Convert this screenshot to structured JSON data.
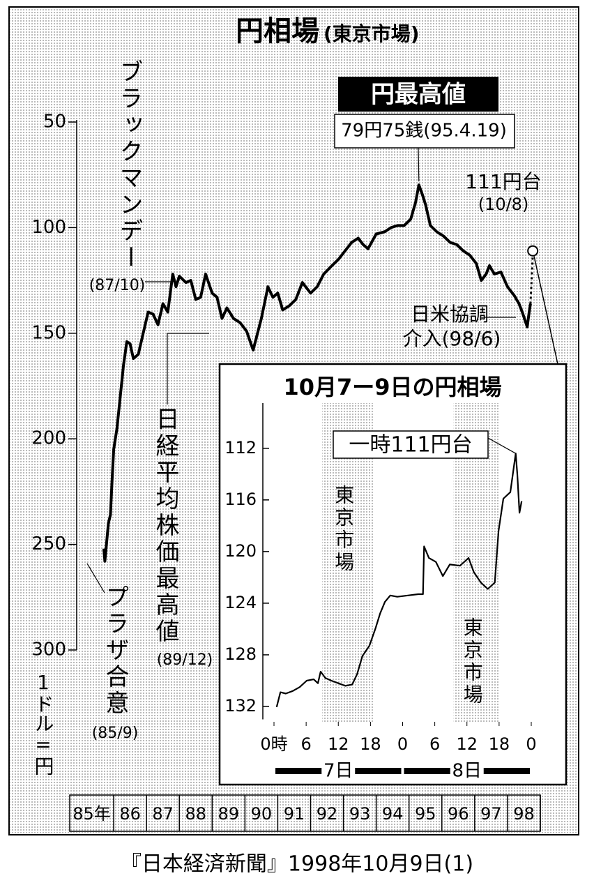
{
  "title": "円相場",
  "subtitle": "(東京市場)",
  "source": "『日本経済新聞』1998年10月9日(1)",
  "chart_data": [
    {
      "type": "line",
      "y_label": "1ドル=円",
      "color": "#000000",
      "y_inverted": true,
      "ylim": [
        50,
        300
      ],
      "yticks": [
        50,
        100,
        150,
        200,
        250,
        300
      ],
      "xlim": [
        1985,
        1999
      ],
      "xticks": [
        {
          "value": 1985,
          "label": "85年"
        },
        {
          "value": 1986,
          "label": "86"
        },
        {
          "value": 1987,
          "label": "87"
        },
        {
          "value": 1988,
          "label": "88"
        },
        {
          "value": 1989,
          "label": "89"
        },
        {
          "value": 1990,
          "label": "90"
        },
        {
          "value": 1991,
          "label": "91"
        },
        {
          "value": 1992,
          "label": "92"
        },
        {
          "value": 1993,
          "label": "93"
        },
        {
          "value": 1994,
          "label": "94"
        },
        {
          "value": 1995,
          "label": "95"
        },
        {
          "value": 1996,
          "label": "96"
        },
        {
          "value": 1997,
          "label": "97"
        },
        {
          "value": 1998,
          "label": "98"
        },
        {
          "value": 1999,
          "label": ""
        }
      ],
      "x": [
        1985.7,
        1985.73,
        1985.78,
        1985.84,
        1985.9,
        1985.95,
        1986.0,
        1986.1,
        1986.2,
        1986.3,
        1986.4,
        1986.5,
        1986.6,
        1986.75,
        1986.9,
        1987.05,
        1987.2,
        1987.35,
        1987.5,
        1987.65,
        1987.8,
        1987.9,
        1988.0,
        1988.2,
        1988.35,
        1988.5,
        1988.65,
        1988.8,
        1989.0,
        1989.15,
        1989.3,
        1989.45,
        1989.65,
        1989.85,
        1990.05,
        1990.25,
        1990.35,
        1990.5,
        1990.7,
        1990.85,
        1991.0,
        1991.15,
        1991.35,
        1991.55,
        1991.75,
        1992.0,
        1992.2,
        1992.4,
        1992.65,
        1992.85,
        1993.1,
        1993.25,
        1993.45,
        1993.6,
        1993.75,
        1994.0,
        1994.25,
        1994.45,
        1994.65,
        1994.85,
        1995.05,
        1995.2,
        1995.3,
        1995.4,
        1995.5,
        1995.65,
        1995.85,
        1996.05,
        1996.25,
        1996.45,
        1996.65,
        1996.85,
        1997.05,
        1997.2,
        1997.35,
        1997.45,
        1997.6,
        1997.8,
        1998.0,
        1998.2,
        1998.35,
        1998.45,
        1998.6,
        1998.66,
        1998.7
      ],
      "values": [
        252,
        258,
        250,
        240,
        236,
        220,
        205,
        195,
        180,
        165,
        154,
        155,
        162,
        160,
        150,
        140,
        141,
        146,
        136,
        140,
        122,
        128,
        123,
        126,
        125,
        134,
        133,
        122,
        131,
        133,
        143,
        138,
        143,
        145,
        149,
        158,
        152,
        143,
        128,
        133,
        131,
        139,
        137,
        134,
        126,
        131,
        128,
        122,
        118,
        115,
        110,
        107,
        105,
        108,
        110,
        103,
        102,
        100,
        99,
        99,
        96,
        88,
        79.75,
        84,
        89,
        99,
        102,
        104,
        107,
        108,
        111,
        113,
        117,
        125,
        122,
        118,
        122,
        121,
        128,
        132,
        136,
        140,
        147,
        140,
        136
      ],
      "highlight": {
        "x": 1998.77,
        "y": 111
      },
      "annotations": [
        {
          "text": "ブラックマンデー"
        },
        {
          "text": "(87/10)"
        },
        {
          "text": "日経平均株価最高値"
        },
        {
          "text": "(89/12)"
        },
        {
          "text": "プラザ合意"
        },
        {
          "text": "(85/9)"
        },
        {
          "text": "円最高値"
        },
        {
          "text": "79円75銭(95.4.19)"
        },
        {
          "text": "111円台"
        },
        {
          "text": "(10/8)"
        },
        {
          "text": "日米協調"
        },
        {
          "text": "介入(98/6)"
        }
      ]
    },
    {
      "type": "line",
      "title": "10月7ー9日の円相場",
      "color": "#000000",
      "y_inverted": true,
      "ylim": [
        108.5,
        133
      ],
      "yticks": [
        112,
        116,
        120,
        124,
        128,
        132
      ],
      "xlim": [
        0,
        48
      ],
      "xticks": [
        {
          "value": 0,
          "label": "0時"
        },
        6,
        12,
        18,
        {
          "value": 24,
          "label": "0"
        },
        {
          "value": 30,
          "label": "6"
        },
        {
          "value": 36,
          "label": "12"
        },
        {
          "value": 42,
          "label": "18"
        },
        {
          "value": 48,
          "label": "0"
        }
      ],
      "x": [
        0.5,
        1.2,
        2.2,
        3.5,
        4.8,
        6.1,
        7.4,
        8.2,
        8.7,
        9.6,
        10.7,
        12.0,
        13.3,
        14.6,
        15.5,
        16.5,
        17.8,
        18.9,
        19.8,
        20.7,
        21.7,
        23.0,
        25.0,
        26.9,
        27.8,
        28.0,
        28.9,
        30.2,
        31.5,
        32.8,
        34.7,
        36.3,
        37.3,
        38.6,
        39.9,
        41.2,
        41.9,
        42.8,
        44.1,
        45.1,
        45.4,
        45.8,
        46.2
      ],
      "values": [
        132.05,
        130.9,
        131.0,
        130.8,
        130.5,
        130.0,
        129.9,
        130.2,
        129.3,
        129.8,
        130.0,
        130.2,
        130.4,
        130.3,
        129.5,
        128.1,
        127.3,
        126.0,
        124.8,
        123.9,
        123.4,
        123.5,
        123.4,
        123.3,
        123.3,
        119.6,
        120.5,
        120.8,
        121.9,
        121.0,
        121.1,
        120.5,
        121.6,
        122.4,
        122.9,
        122.4,
        118.4,
        115.9,
        115.4,
        112.4,
        114.0,
        117.0,
        116.1
      ],
      "bands": [
        {
          "label": "東京市場",
          "range": [
            9,
            18.5
          ]
        },
        {
          "label": "東京市場",
          "range": [
            33.5,
            42
          ]
        }
      ],
      "days": [
        {
          "label": "7日",
          "range": [
            0,
            24
          ]
        },
        {
          "label": "8日",
          "range": [
            24,
            48
          ]
        }
      ],
      "annotations": [
        {
          "text": "一時111円台"
        }
      ]
    }
  ]
}
